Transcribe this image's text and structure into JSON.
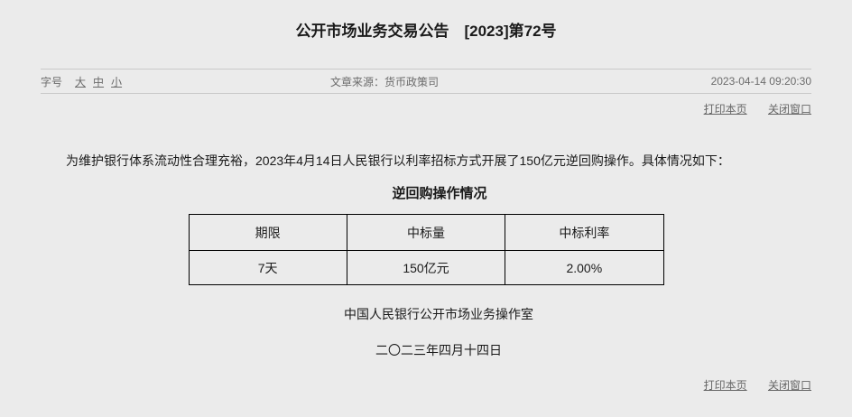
{
  "title": "公开市场业务交易公告　[2023]第72号",
  "meta_bar": {
    "font_size_label": "字号",
    "font_size_options": [
      {
        "label": "大"
      },
      {
        "label": "中"
      },
      {
        "label": "小"
      }
    ],
    "source_label": "文章来源：",
    "source_value": "货币政策司",
    "datetime": "2023-04-14 09:20:30"
  },
  "actions": {
    "print_label": "打印本页",
    "close_label": "关闭窗口"
  },
  "body_paragraph": "为维护银行体系流动性合理充裕，2023年4月14日人民银行以利率招标方式开展了150亿元逆回购操作。具体情况如下：",
  "operation_table": {
    "caption": "逆回购操作情况",
    "headers": [
      "期限",
      "中标量",
      "中标利率"
    ],
    "rows": [
      [
        "7天",
        "150亿元",
        "2.00%"
      ]
    ]
  },
  "signature": {
    "org": "中国人民银行公开市场业务操作室",
    "date": "二〇二三年四月十四日"
  },
  "colors": {
    "page_background": "#ebebeb",
    "divider": "#c9c9c9",
    "link_gray": "#666666",
    "text_dark": "#1a1a1a",
    "table_border": "#000000"
  }
}
